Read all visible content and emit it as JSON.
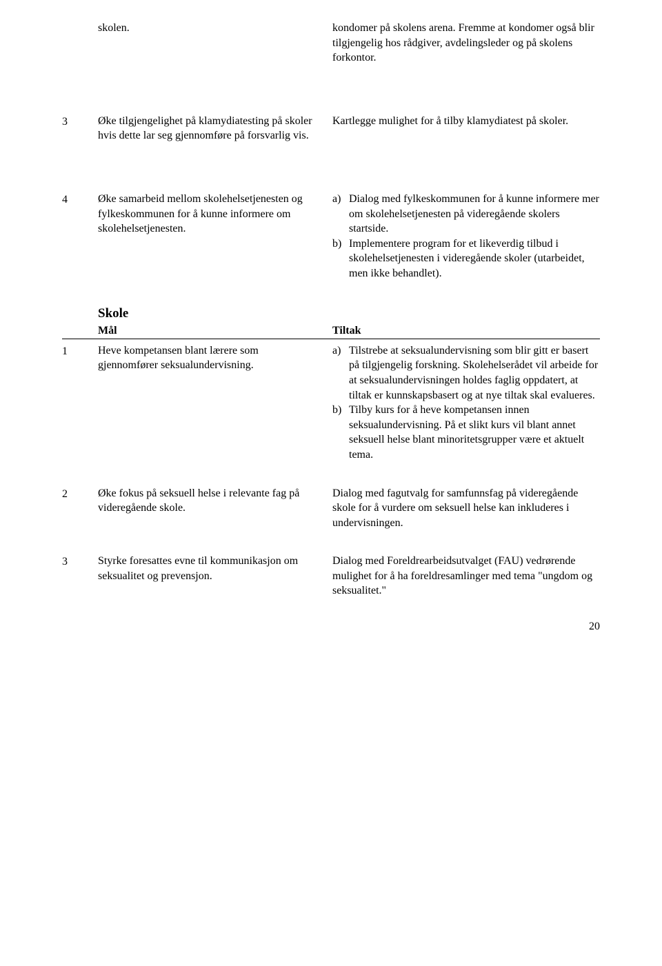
{
  "section1": {
    "row1": {
      "num": "",
      "left": "skolen.",
      "right": "kondomer på skolens arena. Fremme at kondomer også blir tilgjengelig hos rådgiver, avdelingsleder og på skolens forkontor."
    },
    "row3": {
      "num": "3",
      "left": "Øke tilgjengelighet på klamydiatesting på skoler hvis dette lar seg gjennomføre på forsvarlig vis.",
      "right": "Kartlegge mulighet for å tilby klamydiatest på skoler."
    },
    "row4": {
      "num": "4",
      "left": "Øke samarbeid mellom skolehelsetjenesten og fylkeskommunen for å kunne informere om skolehelsetjenesten.",
      "right_a_letter": "a)",
      "right_a": "Dialog med fylkeskommunen for å kunne informere mer om skolehelsetjenesten på videregående skolers startside.",
      "right_b_letter": "b)",
      "right_b": "Implementere program for et likeverdig tilbud i skolehelsetjenesten i videregående skoler (utarbeidet, men ikke behandlet)."
    }
  },
  "section2": {
    "title": "Skole",
    "header_left": "Mål",
    "header_right": "Tiltak",
    "row1": {
      "num": "1",
      "left": "Heve kompetansen blant lærere som gjennomfører seksualundervisning.",
      "right_a_letter": "a)",
      "right_a": "Tilstrebe at seksualundervisning som blir gitt er basert på tilgjengelig forskning. Skolehelserådet vil arbeide for at seksualundervisningen holdes faglig oppdatert, at tiltak er kunnskapsbasert og at nye tiltak skal evalueres.",
      "right_b_letter": "b)",
      "right_b": "Tilby kurs for å heve kompetansen innen seksualundervisning. På et slikt kurs vil blant annet seksuell helse blant minoritetsgrupper være et aktuelt tema."
    },
    "row2": {
      "num": "2",
      "left": "Øke fokus på seksuell helse i relevante fag på videregående skole.",
      "right": "Dialog med fagutvalg for samfunnsfag på videregående skole for å vurdere om seksuell helse kan inkluderes i undervisningen."
    },
    "row3": {
      "num": "3",
      "left": "Styrke foresattes evne til kommunikasjon om seksualitet og prevensjon.",
      "right": "Dialog med Foreldrearbeidsutvalget (FAU) vedrørende mulighet for å ha foreldresamlinger med tema \"ungdom og seksualitet.\""
    }
  },
  "page_number": "20"
}
